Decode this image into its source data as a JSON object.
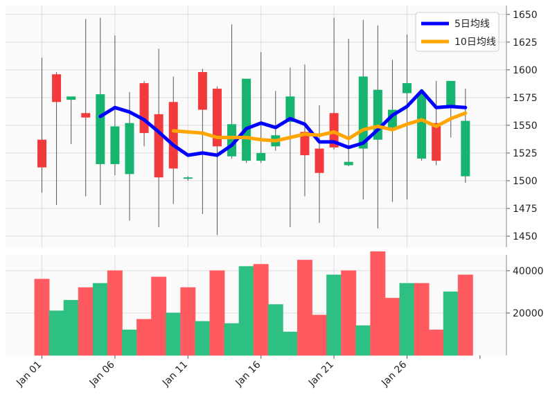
{
  "chart_data": [
    {
      "type": "candlestick",
      "x": [
        "Jan 01",
        "Jan 02",
        "Jan 03",
        "Jan 04",
        "Jan 05",
        "Jan 06",
        "Jan 07",
        "Jan 08",
        "Jan 09",
        "Jan 10",
        "Jan 11",
        "Jan 12",
        "Jan 13",
        "Jan 14",
        "Jan 15",
        "Jan 16",
        "Jan 17",
        "Jan 18",
        "Jan 19",
        "Jan 20",
        "Jan 21",
        "Jan 22",
        "Jan 23",
        "Jan 24",
        "Jan 25",
        "Jan 26",
        "Jan 27",
        "Jan 28",
        "Jan 29",
        "Jan 30"
      ],
      "xticks": [
        "Jan 01",
        "Jan 06",
        "Jan 11",
        "Jan 16",
        "Jan 21",
        "Jan 26"
      ],
      "yticks": [
        1450,
        1475,
        1500,
        1525,
        1550,
        1575,
        1600,
        1625,
        1650
      ],
      "ylim": [
        1440,
        1658
      ],
      "grid": true,
      "legend_position": "top-right",
      "up_color": "#16b46f",
      "down_color": "#f23a3c",
      "ylabel": "",
      "title": "",
      "candles": [
        {
          "open": 1537,
          "high": 1611,
          "low": 1489,
          "close": 1512
        },
        {
          "open": 1596,
          "high": 1598,
          "low": 1478,
          "close": 1571
        },
        {
          "open": 1573,
          "high": 1575,
          "low": 1533,
          "close": 1576
        },
        {
          "open": 1561,
          "high": 1646,
          "low": 1486,
          "close": 1557
        },
        {
          "open": 1515,
          "high": 1647,
          "low": 1478,
          "close": 1578
        },
        {
          "open": 1515,
          "high": 1631,
          "low": 1505,
          "close": 1549
        },
        {
          "open": 1506,
          "high": 1580,
          "low": 1464,
          "close": 1552
        },
        {
          "open": 1588,
          "high": 1590,
          "low": 1531,
          "close": 1543
        },
        {
          "open": 1560,
          "high": 1619,
          "low": 1458,
          "close": 1503
        },
        {
          "open": 1571,
          "high": 1594,
          "low": 1479,
          "close": 1511
        },
        {
          "open": 1502,
          "high": 1504,
          "low": 1500,
          "close": 1503
        },
        {
          "open": 1598,
          "high": 1601,
          "low": 1470,
          "close": 1564
        },
        {
          "open": 1583,
          "high": 1585,
          "low": 1451,
          "close": 1531
        },
        {
          "open": 1522,
          "high": 1641,
          "low": 1520,
          "close": 1551
        },
        {
          "open": 1518,
          "high": 1591,
          "low": 1516,
          "close": 1592
        },
        {
          "open": 1518,
          "high": 1616,
          "low": 1516,
          "close": 1525
        },
        {
          "open": 1531,
          "high": 1581,
          "low": 1527,
          "close": 1541
        },
        {
          "open": 1553,
          "high": 1602,
          "low": 1458,
          "close": 1576
        },
        {
          "open": 1544,
          "high": 1605,
          "low": 1486,
          "close": 1523
        },
        {
          "open": 1529,
          "high": 1568,
          "low": 1462,
          "close": 1507
        },
        {
          "open": 1561,
          "high": 1647,
          "low": 1528,
          "close": 1530
        },
        {
          "open": 1514,
          "high": 1628,
          "low": 1513,
          "close": 1517
        },
        {
          "open": 1529,
          "high": 1645,
          "low": 1483,
          "close": 1594
        },
        {
          "open": 1537,
          "high": 1640,
          "low": 1457,
          "close": 1582
        },
        {
          "open": 1548,
          "high": 1609,
          "low": 1481,
          "close": 1564
        },
        {
          "open": 1579,
          "high": 1632,
          "low": 1483,
          "close": 1588
        },
        {
          "open": 1520,
          "high": 1581,
          "low": 1518,
          "close": 1579
        },
        {
          "open": 1552,
          "high": 1590,
          "low": 1514,
          "close": 1518
        },
        {
          "open": 1568,
          "high": 1590,
          "low": 1539,
          "close": 1590
        },
        {
          "open": 1504,
          "high": 1583,
          "low": 1498,
          "close": 1554
        }
      ],
      "series": [
        {
          "name": "5日均线",
          "color": "#0000ff",
          "values": [
            null,
            null,
            null,
            null,
            1558,
            1566,
            1562,
            1555,
            1544,
            1532,
            1523,
            1525,
            1523,
            1532,
            1547,
            1552,
            1548,
            1556,
            1551,
            1535,
            1535,
            1530,
            1534,
            1546,
            1559,
            1567,
            1581,
            1566,
            1567,
            1566
          ]
        },
        {
          "name": "10日均线",
          "color": "#ffa500",
          "values": [
            null,
            null,
            null,
            null,
            null,
            null,
            null,
            null,
            null,
            1545,
            1544,
            1543,
            1539,
            1539,
            1539,
            1537,
            1536,
            1539,
            1542,
            1541,
            1544,
            1538,
            1546,
            1549,
            1546,
            1551,
            1555,
            1549,
            1556,
            1561
          ]
        }
      ]
    },
    {
      "type": "bar",
      "title": "",
      "ylabel": "",
      "yticks": [
        20000,
        40000
      ],
      "ylim": [
        0,
        47500
      ],
      "grid": true,
      "values": [
        36000,
        21000,
        26000,
        32000,
        34000,
        40000,
        12000,
        17000,
        37000,
        20000,
        32000,
        16000,
        40000,
        15000,
        42000,
        43000,
        24000,
        11000,
        45000,
        19000,
        38000,
        40000,
        14000,
        49000,
        27000,
        34000,
        34000,
        12000,
        30000,
        38000
      ],
      "colors": [
        "down",
        "up",
        "up",
        "down",
        "up",
        "down",
        "up",
        "down",
        "down",
        "up",
        "down",
        "up",
        "down",
        "up",
        "up",
        "down",
        "up",
        "up",
        "down",
        "down",
        "up",
        "down",
        "up",
        "down",
        "down",
        "up",
        "down",
        "down",
        "up",
        "down"
      ],
      "up_color": "#2ec083",
      "down_color": "#ff5a5f"
    }
  ]
}
